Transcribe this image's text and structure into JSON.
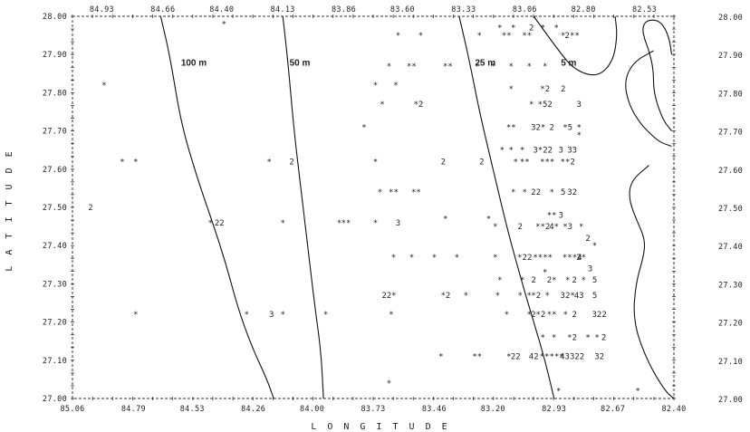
{
  "chart_data": {
    "type": "scatter",
    "xlabel": "L O N G I T U D E",
    "ylabel": "L A T I T U D E",
    "xlim": [
      85.06,
      82.4
    ],
    "ylim": [
      27.0,
      28.0
    ],
    "top_ticks": [
      "84.93",
      "84.66",
      "84.40",
      "84.13",
      "83.86",
      "83.60",
      "83.33",
      "83.06",
      "82.80",
      "82.53"
    ],
    "bottom_ticks": [
      "85.06",
      "84.79",
      "84.53",
      "84.26",
      "84.00",
      "83.73",
      "83.46",
      "83.20",
      "82.93",
      "82.67",
      "82.40"
    ],
    "left_ticks": [
      "28.00",
      "27.90",
      "27.80",
      "27.70",
      "27.60",
      "27.50",
      "27.40",
      "27.30",
      "27.20",
      "27.10",
      "27.00"
    ],
    "right_ticks": [
      "28.00",
      "27.90",
      "27.80",
      "27.70",
      "27.60",
      "27.50",
      "27.40",
      "27.30",
      "27.20",
      "27.10",
      "27.00"
    ],
    "contours": [
      {
        "label": "100 m",
        "label_at": {
          "x": 84.58,
          "y": 27.88
        },
        "points": [
          [
            84.67,
            28.0
          ],
          [
            84.63,
            27.9
          ],
          [
            84.58,
            27.72
          ],
          [
            84.51,
            27.58
          ],
          [
            84.44,
            27.46
          ],
          [
            84.38,
            27.35
          ],
          [
            84.33,
            27.24
          ],
          [
            84.27,
            27.14
          ],
          [
            84.2,
            27.05
          ],
          [
            84.17,
            27.0
          ]
        ]
      },
      {
        "label": "50 m",
        "label_at": {
          "x": 84.1,
          "y": 27.88
        },
        "points": [
          [
            84.13,
            28.0
          ],
          [
            84.11,
            27.9
          ],
          [
            84.08,
            27.7
          ],
          [
            84.05,
            27.55
          ],
          [
            84.02,
            27.4
          ],
          [
            83.99,
            27.25
          ],
          [
            83.96,
            27.12
          ],
          [
            83.95,
            27.0
          ]
        ]
      },
      {
        "label": "25 m",
        "label_at": {
          "x": 83.28,
          "y": 27.88
        },
        "points": [
          [
            83.35,
            28.0
          ],
          [
            83.31,
            27.9
          ],
          [
            83.26,
            27.75
          ],
          [
            83.2,
            27.6
          ],
          [
            83.14,
            27.45
          ],
          [
            83.08,
            27.32
          ],
          [
            83.02,
            27.2
          ],
          [
            82.97,
            27.1
          ],
          [
            82.93,
            27.0
          ]
        ]
      },
      {
        "label": "5 m",
        "label_at": {
          "x": 82.9,
          "y": 27.88
        },
        "points": [
          [
            83.02,
            28.0
          ],
          [
            82.91,
            27.91
          ],
          [
            82.84,
            27.86
          ],
          [
            82.74,
            27.84
          ],
          [
            82.67,
            27.88
          ],
          [
            82.65,
            27.95
          ],
          [
            82.66,
            28.0
          ]
        ]
      },
      {
        "label": "",
        "points": [
          [
            82.49,
            27.91
          ],
          [
            82.58,
            27.88
          ],
          [
            82.62,
            27.83
          ],
          [
            82.6,
            27.77
          ],
          [
            82.55,
            27.72
          ],
          [
            82.5,
            27.69
          ],
          [
            82.46,
            27.67
          ],
          [
            82.41,
            27.66
          ]
        ]
      },
      {
        "label": "",
        "points": [
          [
            82.41,
            27.7
          ],
          [
            82.45,
            27.73
          ],
          [
            82.49,
            27.8
          ],
          [
            82.49,
            27.86
          ],
          [
            82.51,
            27.91
          ],
          [
            82.53,
            27.94
          ],
          [
            82.54,
            27.97
          ],
          [
            82.52,
            27.99
          ],
          [
            82.47,
            27.99
          ],
          [
            82.44,
            27.97
          ],
          [
            82.42,
            27.94
          ],
          [
            82.41,
            27.9
          ]
        ]
      },
      {
        "label": "",
        "points": [
          [
            82.51,
            27.61
          ],
          [
            82.59,
            27.57
          ],
          [
            82.6,
            27.52
          ],
          [
            82.56,
            27.46
          ],
          [
            82.53,
            27.42
          ],
          [
            82.53,
            27.38
          ],
          [
            82.57,
            27.3
          ],
          [
            82.58,
            27.2
          ],
          [
            82.52,
            27.1
          ],
          [
            82.44,
            27.02
          ],
          [
            82.4,
            27.0
          ]
        ]
      }
    ],
    "marks": [
      {
        "x": 84.39,
        "y": 27.98,
        "t": "*"
      },
      {
        "x": 83.62,
        "y": 27.95,
        "t": "*"
      },
      {
        "x": 83.52,
        "y": 27.95,
        "t": "*"
      },
      {
        "x": 83.26,
        "y": 27.95,
        "t": "*"
      },
      {
        "x": 83.17,
        "y": 27.97,
        "t": "*"
      },
      {
        "x": 83.14,
        "y": 27.95,
        "t": "**"
      },
      {
        "x": 83.11,
        "y": 27.97,
        "t": "*"
      },
      {
        "x": 83.05,
        "y": 27.95,
        "t": "**"
      },
      {
        "x": 83.03,
        "y": 27.97,
        "t": "2"
      },
      {
        "x": 82.98,
        "y": 27.97,
        "t": "*"
      },
      {
        "x": 82.92,
        "y": 27.97,
        "t": "*"
      },
      {
        "x": 82.89,
        "y": 27.95,
        "t": "*"
      },
      {
        "x": 82.85,
        "y": 27.95,
        "t": "2**"
      },
      {
        "x": 83.66,
        "y": 27.87,
        "t": "*"
      },
      {
        "x": 83.56,
        "y": 27.87,
        "t": "**"
      },
      {
        "x": 83.4,
        "y": 27.87,
        "t": "**"
      },
      {
        "x": 83.27,
        "y": 27.87,
        "t": "*"
      },
      {
        "x": 83.2,
        "y": 27.87,
        "t": "*"
      },
      {
        "x": 83.12,
        "y": 27.87,
        "t": "*"
      },
      {
        "x": 83.04,
        "y": 27.87,
        "t": "*"
      },
      {
        "x": 82.97,
        "y": 27.87,
        "t": "*"
      },
      {
        "x": 84.92,
        "y": 27.82,
        "t": "*"
      },
      {
        "x": 83.72,
        "y": 27.82,
        "t": "*"
      },
      {
        "x": 83.63,
        "y": 27.82,
        "t": "*"
      },
      {
        "x": 83.12,
        "y": 27.81,
        "t": "*"
      },
      {
        "x": 82.97,
        "y": 27.81,
        "t": "*2"
      },
      {
        "x": 82.89,
        "y": 27.81,
        "t": "2"
      },
      {
        "x": 83.69,
        "y": 27.77,
        "t": "*"
      },
      {
        "x": 83.53,
        "y": 27.77,
        "t": "*2"
      },
      {
        "x": 83.03,
        "y": 27.77,
        "t": "*"
      },
      {
        "x": 82.97,
        "y": 27.77,
        "t": "*52"
      },
      {
        "x": 82.82,
        "y": 27.77,
        "t": "3"
      },
      {
        "x": 83.77,
        "y": 27.71,
        "t": "*"
      },
      {
        "x": 83.12,
        "y": 27.71,
        "t": "**"
      },
      {
        "x": 83.0,
        "y": 27.71,
        "t": "32*"
      },
      {
        "x": 82.94,
        "y": 27.71,
        "t": "2"
      },
      {
        "x": 82.87,
        "y": 27.71,
        "t": "*5"
      },
      {
        "x": 82.82,
        "y": 27.71,
        "t": "*"
      },
      {
        "x": 82.82,
        "y": 27.69,
        "t": "*"
      },
      {
        "x": 83.16,
        "y": 27.65,
        "t": "*"
      },
      {
        "x": 83.12,
        "y": 27.65,
        "t": "*"
      },
      {
        "x": 83.07,
        "y": 27.65,
        "t": "*"
      },
      {
        "x": 82.98,
        "y": 27.65,
        "t": "3*22"
      },
      {
        "x": 82.9,
        "y": 27.65,
        "t": "3"
      },
      {
        "x": 82.85,
        "y": 27.65,
        "t": "33"
      },
      {
        "x": 84.84,
        "y": 27.62,
        "t": "*"
      },
      {
        "x": 84.78,
        "y": 27.62,
        "t": "*"
      },
      {
        "x": 84.19,
        "y": 27.62,
        "t": "*"
      },
      {
        "x": 84.09,
        "y": 27.62,
        "t": "2"
      },
      {
        "x": 83.72,
        "y": 27.62,
        "t": "*"
      },
      {
        "x": 83.42,
        "y": 27.62,
        "t": "2"
      },
      {
        "x": 83.25,
        "y": 27.62,
        "t": "2"
      },
      {
        "x": 83.1,
        "y": 27.62,
        "t": "*"
      },
      {
        "x": 83.06,
        "y": 27.62,
        "t": "**"
      },
      {
        "x": 82.96,
        "y": 27.62,
        "t": "***"
      },
      {
        "x": 82.87,
        "y": 27.62,
        "t": "**2"
      },
      {
        "x": 83.7,
        "y": 27.54,
        "t": "*"
      },
      {
        "x": 83.64,
        "y": 27.54,
        "t": "**"
      },
      {
        "x": 83.54,
        "y": 27.54,
        "t": "**"
      },
      {
        "x": 83.11,
        "y": 27.54,
        "t": "*"
      },
      {
        "x": 83.06,
        "y": 27.54,
        "t": "*"
      },
      {
        "x": 83.01,
        "y": 27.54,
        "t": "22"
      },
      {
        "x": 82.94,
        "y": 27.54,
        "t": "*"
      },
      {
        "x": 82.89,
        "y": 27.54,
        "t": "5"
      },
      {
        "x": 82.85,
        "y": 27.54,
        "t": "32"
      },
      {
        "x": 84.98,
        "y": 27.5,
        "t": "2"
      },
      {
        "x": 84.45,
        "y": 27.46,
        "t": "*"
      },
      {
        "x": 84.41,
        "y": 27.46,
        "t": "22"
      },
      {
        "x": 84.13,
        "y": 27.46,
        "t": "*"
      },
      {
        "x": 83.88,
        "y": 27.46,
        "t": "*"
      },
      {
        "x": 83.85,
        "y": 27.46,
        "t": "**"
      },
      {
        "x": 83.72,
        "y": 27.46,
        "t": "*"
      },
      {
        "x": 83.62,
        "y": 27.46,
        "t": "3"
      },
      {
        "x": 83.41,
        "y": 27.47,
        "t": "*"
      },
      {
        "x": 83.22,
        "y": 27.47,
        "t": "*"
      },
      {
        "x": 83.19,
        "y": 27.45,
        "t": "*"
      },
      {
        "x": 83.08,
        "y": 27.45,
        "t": "2"
      },
      {
        "x": 82.98,
        "y": 27.45,
        "t": "**2"
      },
      {
        "x": 82.93,
        "y": 27.45,
        "t": "4*"
      },
      {
        "x": 82.94,
        "y": 27.48,
        "t": "**"
      },
      {
        "x": 82.9,
        "y": 27.48,
        "t": "3"
      },
      {
        "x": 82.87,
        "y": 27.45,
        "t": "*3"
      },
      {
        "x": 82.81,
        "y": 27.45,
        "t": "*"
      },
      {
        "x": 82.78,
        "y": 27.42,
        "t": "2"
      },
      {
        "x": 82.75,
        "y": 27.4,
        "t": "*"
      },
      {
        "x": 83.64,
        "y": 27.37,
        "t": "*"
      },
      {
        "x": 83.56,
        "y": 27.37,
        "t": "*"
      },
      {
        "x": 83.46,
        "y": 27.37,
        "t": "*"
      },
      {
        "x": 83.36,
        "y": 27.37,
        "t": "*"
      },
      {
        "x": 83.19,
        "y": 27.37,
        "t": "*"
      },
      {
        "x": 83.06,
        "y": 27.37,
        "t": "*22"
      },
      {
        "x": 82.98,
        "y": 27.37,
        "t": "****"
      },
      {
        "x": 82.85,
        "y": 27.37,
        "t": "***4"
      },
      {
        "x": 82.81,
        "y": 27.37,
        "t": "2*"
      },
      {
        "x": 83.17,
        "y": 27.31,
        "t": "*"
      },
      {
        "x": 83.07,
        "y": 27.31,
        "t": "*"
      },
      {
        "x": 83.02,
        "y": 27.31,
        "t": "2"
      },
      {
        "x": 82.97,
        "y": 27.33,
        "t": "*"
      },
      {
        "x": 82.94,
        "y": 27.31,
        "t": "2*"
      },
      {
        "x": 82.87,
        "y": 27.31,
        "t": "*"
      },
      {
        "x": 82.84,
        "y": 27.31,
        "t": "2"
      },
      {
        "x": 82.8,
        "y": 27.31,
        "t": "*"
      },
      {
        "x": 82.77,
        "y": 27.34,
        "t": "3"
      },
      {
        "x": 82.75,
        "y": 27.31,
        "t": "5"
      },
      {
        "x": 83.66,
        "y": 27.27,
        "t": "22*"
      },
      {
        "x": 83.41,
        "y": 27.27,
        "t": "*2"
      },
      {
        "x": 83.32,
        "y": 27.27,
        "t": "*"
      },
      {
        "x": 83.18,
        "y": 27.27,
        "t": "*"
      },
      {
        "x": 83.08,
        "y": 27.27,
        "t": "*"
      },
      {
        "x": 83.04,
        "y": 27.27,
        "t": "*"
      },
      {
        "x": 83.01,
        "y": 27.27,
        "t": "*2"
      },
      {
        "x": 82.96,
        "y": 27.27,
        "t": "*"
      },
      {
        "x": 82.87,
        "y": 27.27,
        "t": "32*"
      },
      {
        "x": 82.82,
        "y": 27.27,
        "t": "43"
      },
      {
        "x": 82.75,
        "y": 27.27,
        "t": "5"
      },
      {
        "x": 84.78,
        "y": 27.22,
        "t": "*"
      },
      {
        "x": 84.29,
        "y": 27.22,
        "t": "*"
      },
      {
        "x": 84.18,
        "y": 27.22,
        "t": "3"
      },
      {
        "x": 84.13,
        "y": 27.22,
        "t": "*"
      },
      {
        "x": 83.94,
        "y": 27.22,
        "t": "*"
      },
      {
        "x": 83.65,
        "y": 27.22,
        "t": "*"
      },
      {
        "x": 83.14,
        "y": 27.22,
        "t": "*"
      },
      {
        "x": 83.04,
        "y": 27.22,
        "t": "*"
      },
      {
        "x": 83.0,
        "y": 27.22,
        "t": "2*2"
      },
      {
        "x": 82.94,
        "y": 27.22,
        "t": "**"
      },
      {
        "x": 82.88,
        "y": 27.22,
        "t": "*"
      },
      {
        "x": 82.84,
        "y": 27.22,
        "t": "2"
      },
      {
        "x": 82.73,
        "y": 27.22,
        "t": "322"
      },
      {
        "x": 82.98,
        "y": 27.16,
        "t": "*"
      },
      {
        "x": 82.93,
        "y": 27.16,
        "t": "*"
      },
      {
        "x": 82.85,
        "y": 27.16,
        "t": "*2"
      },
      {
        "x": 82.78,
        "y": 27.16,
        "t": "*"
      },
      {
        "x": 82.74,
        "y": 27.16,
        "t": "*"
      },
      {
        "x": 82.71,
        "y": 27.16,
        "t": "2"
      },
      {
        "x": 83.43,
        "y": 27.11,
        "t": "*"
      },
      {
        "x": 83.27,
        "y": 27.11,
        "t": "**"
      },
      {
        "x": 83.13,
        "y": 27.11,
        "t": "*"
      },
      {
        "x": 83.1,
        "y": 27.11,
        "t": "22"
      },
      {
        "x": 83.02,
        "y": 27.11,
        "t": "42"
      },
      {
        "x": 82.94,
        "y": 27.11,
        "t": "*****"
      },
      {
        "x": 82.85,
        "y": 27.11,
        "t": "43322"
      },
      {
        "x": 82.73,
        "y": 27.11,
        "t": "32"
      },
      {
        "x": 83.66,
        "y": 27.04,
        "t": "*"
      },
      {
        "x": 82.91,
        "y": 27.02,
        "t": "*"
      },
      {
        "x": 82.56,
        "y": 27.02,
        "t": "*"
      }
    ]
  }
}
